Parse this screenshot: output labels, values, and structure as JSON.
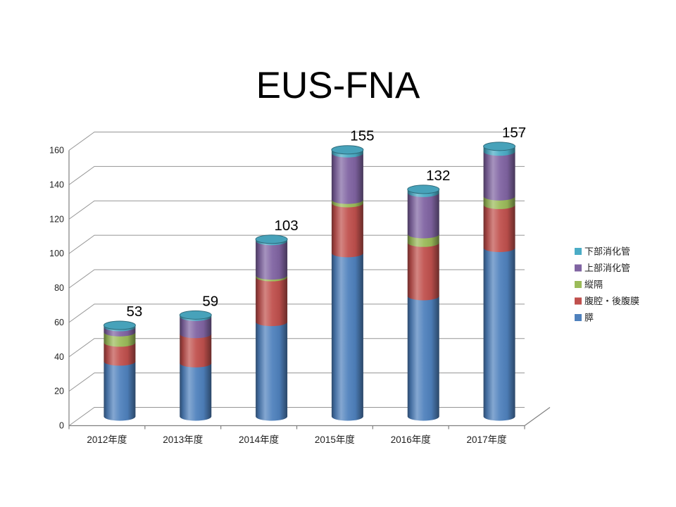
{
  "slide": {
    "background": "#ffffff"
  },
  "chart_data": {
    "type": "bar",
    "variant": "3d-stacked-cylinder",
    "title": "EUS-FNA",
    "categories": [
      "2012年度",
      "2013年度",
      "2014年度",
      "2015年度",
      "2016年度",
      "2017年度"
    ],
    "series": [
      {
        "name": "膵",
        "color": "#4F81BD",
        "values": [
          32,
          31,
          55,
          95,
          70,
          98
        ]
      },
      {
        "name": "腹腔・後腹膜",
        "color": "#C0504D",
        "values": [
          11,
          17,
          26,
          29,
          31,
          25
        ]
      },
      {
        "name": "縦隔",
        "color": "#9BBB59",
        "values": [
          6,
          0,
          1,
          2,
          5,
          5
        ]
      },
      {
        "name": "上部消化管",
        "color": "#8064A2",
        "values": [
          3,
          10,
          20,
          27,
          24,
          26
        ]
      },
      {
        "name": "下部消化管",
        "color": "#4BACC6",
        "values": [
          1,
          1,
          1,
          2,
          2,
          3
        ]
      }
    ],
    "totals": [
      53,
      59,
      103,
      155,
      132,
      157
    ],
    "ylim": [
      0,
      160
    ],
    "ytick_step": 20,
    "yticks": [
      0,
      20,
      40,
      60,
      80,
      100,
      120,
      140,
      160
    ],
    "grid": true,
    "legend_position": "right",
    "legend_order": [
      "下部消化管",
      "上部消化管",
      "縦隔",
      "腹腔・後腹膜",
      "膵"
    ],
    "axis_color": "#808080",
    "grid_color": "#959595",
    "text_color": "#1f1f1f",
    "label_color": "#000000"
  }
}
